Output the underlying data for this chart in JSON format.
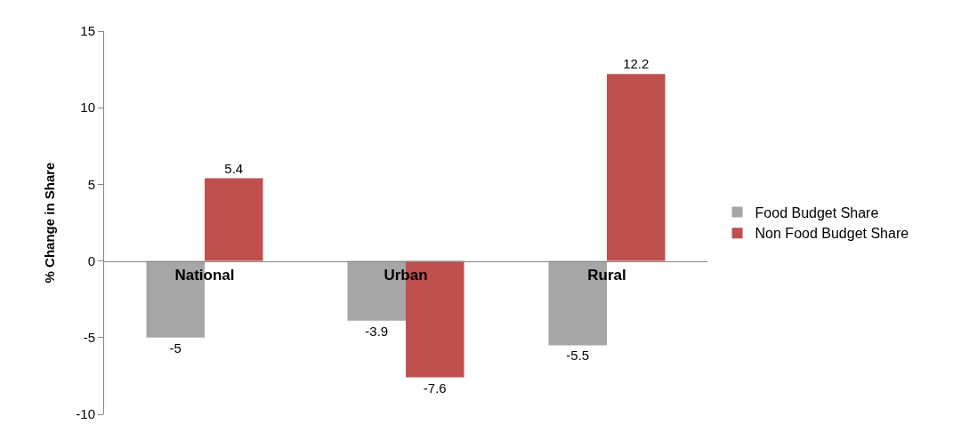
{
  "chart_data": {
    "type": "bar",
    "ylabel": "% Change in Share",
    "categories": [
      "National",
      "Urban",
      "Rural"
    ],
    "series": [
      {
        "name": "Food Budget Share",
        "color": "#a6a6a6",
        "values": [
          -5,
          -3.9,
          -5.5
        ]
      },
      {
        "name": "Non Food Budget Share",
        "color": "#c0504d",
        "values": [
          5.4,
          -7.6,
          12.2
        ]
      }
    ],
    "ylim": [
      -10,
      15
    ],
    "yticks": [
      -10,
      -5,
      0,
      5,
      10,
      15
    ],
    "grid": false,
    "legend": "right",
    "data_labels": true
  }
}
